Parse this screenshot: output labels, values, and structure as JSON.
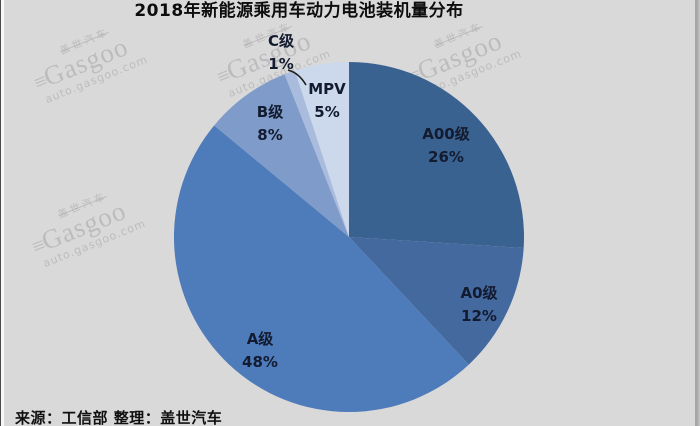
{
  "title": "2018年新能源乘用车动力电池装机量分布",
  "source_label": "来源：工信部 整理：盖世汽车",
  "watermark": {
    "brand_cn": "盖世汽车",
    "brand_en": "Gasgoo",
    "logo_glyph": "≡",
    "site": "auto.gasgoo.com"
  },
  "background_color": "#d9d9d9",
  "chart_data": {
    "type": "pie",
    "title": "2018年新能源乘用车动力电池装机量分布",
    "source": "来源：工信部 整理：盖世汽车",
    "direction": "clockwise",
    "start_angle_deg": 0,
    "legend_position": "none",
    "slices": [
      {
        "label": "A00级",
        "value": 26,
        "pct_label": "26%",
        "color": "#3a6290"
      },
      {
        "label": "A0级",
        "value": 12,
        "pct_label": "12%",
        "color": "#44699f"
      },
      {
        "label": "A级",
        "value": 48,
        "pct_label": "48%",
        "color": "#4e7cba"
      },
      {
        "label": "B级",
        "value": 8,
        "pct_label": "8%",
        "color": "#7e9bca"
      },
      {
        "label": "C级",
        "value": 1,
        "pct_label": "1%",
        "color": "#a9bcdd"
      },
      {
        "label": "MPV",
        "value": 5,
        "pct_label": "5%",
        "color": "#ccd8ec"
      }
    ]
  }
}
